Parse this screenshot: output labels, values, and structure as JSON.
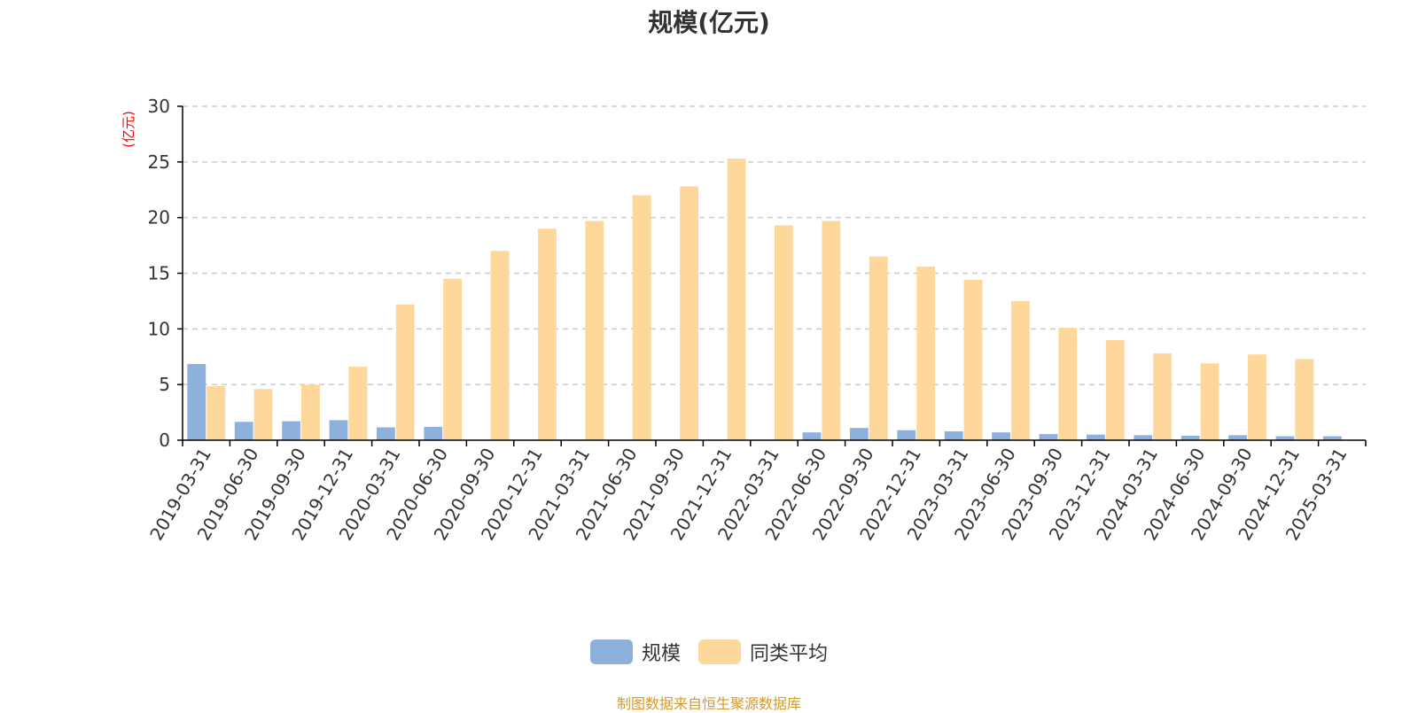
{
  "chart_data": {
    "type": "bar",
    "title": "规模(亿元)",
    "ylabel": "(亿元)",
    "ylim": [
      0,
      30
    ],
    "yticks": [
      0,
      5,
      10,
      15,
      20,
      25,
      30
    ],
    "grid": true,
    "legend_position": "bottom-center",
    "categories": [
      "2019-03-31",
      "2019-06-30",
      "2019-09-30",
      "2019-12-31",
      "2020-03-31",
      "2020-06-30",
      "2020-09-30",
      "2020-12-31",
      "2021-03-31",
      "2021-06-30",
      "2021-09-30",
      "2021-12-31",
      "2022-03-31",
      "2022-06-30",
      "2022-09-30",
      "2022-12-31",
      "2023-03-31",
      "2023-06-30",
      "2023-09-30",
      "2023-12-31",
      "2024-03-31",
      "2024-06-30",
      "2024-09-30",
      "2024-12-31",
      "2025-03-31"
    ],
    "series": [
      {
        "name": "规模",
        "color": "#8eb0dd",
        "values": [
          6.85,
          1.65,
          1.7,
          1.8,
          1.15,
          1.2,
          0,
          0,
          0,
          0,
          0,
          0,
          0,
          0.7,
          1.1,
          0.9,
          0.8,
          0.7,
          0.55,
          0.5,
          0.45,
          0.4,
          0.45,
          0.35,
          0.35
        ]
      },
      {
        "name": "同类平均",
        "color": "#fed89a",
        "values": [
          4.85,
          4.6,
          5.0,
          6.6,
          12.2,
          14.5,
          17.0,
          19.0,
          19.7,
          22.0,
          22.8,
          25.3,
          19.3,
          19.7,
          16.5,
          15.6,
          14.4,
          12.5,
          10.1,
          9.0,
          7.8,
          6.9,
          7.7,
          7.3,
          null
        ]
      }
    ]
  },
  "footer": {
    "source_text": "制图数据来自恒生聚源数据库"
  },
  "colors": {
    "axis": "#000000",
    "grid": "#cccccc",
    "text": "#333333",
    "unit_label": "#ff0000",
    "source": "#d29a2a"
  }
}
